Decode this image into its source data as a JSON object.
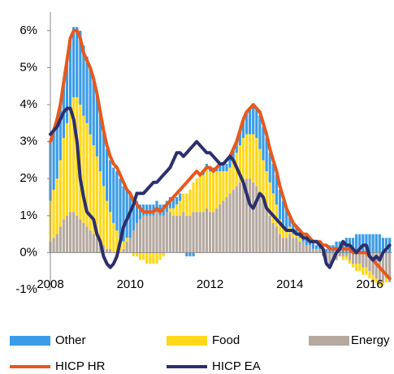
{
  "chart_data": {
    "type": "stacked-bar-line",
    "categories": [
      "2008",
      null,
      null,
      null,
      null,
      null,
      null,
      null,
      null,
      null,
      null,
      null,
      null,
      null,
      null,
      null,
      null,
      null,
      null,
      null,
      null,
      null,
      null,
      null,
      "2010",
      null,
      null,
      null,
      null,
      null,
      null,
      null,
      null,
      null,
      null,
      null,
      null,
      null,
      null,
      null,
      null,
      null,
      null,
      null,
      null,
      null,
      null,
      null,
      "2012",
      null,
      null,
      null,
      null,
      null,
      null,
      null,
      null,
      null,
      null,
      null,
      null,
      null,
      null,
      null,
      null,
      null,
      null,
      null,
      null,
      null,
      null,
      null,
      "2014",
      null,
      null,
      null,
      null,
      null,
      null,
      null,
      null,
      null,
      null,
      null,
      null,
      null,
      null,
      null,
      null,
      null,
      null,
      null,
      null,
      null,
      null,
      null,
      "2016",
      null,
      null,
      null,
      null,
      null,
      null
    ],
    "series": [
      {
        "name": "Energy",
        "kind": "bar",
        "color": "#b5a9a0",
        "values": [
          0.3,
          0.4,
          0.5,
          0.7,
          0.9,
          1.0,
          1.1,
          1.1,
          1.0,
          0.9,
          0.8,
          0.7,
          0.6,
          0.5,
          0.4,
          0.3,
          0.2,
          0.1,
          0.1,
          0.0,
          0.0,
          0.0,
          0.1,
          0.3,
          0.4,
          0.6,
          0.8,
          0.9,
          1.0,
          1.0,
          1.0,
          1.0,
          1.1,
          1.0,
          1.0,
          1.1,
          1.1,
          1.0,
          1.0,
          1.0,
          1.1,
          1.0,
          1.0,
          1.1,
          1.1,
          1.1,
          1.1,
          1.2,
          1.1,
          1.1,
          1.2,
          1.3,
          1.4,
          1.5,
          1.6,
          1.7,
          1.8,
          1.9,
          2.0,
          2.0,
          2.0,
          1.9,
          1.8,
          1.6,
          1.4,
          1.2,
          1.0,
          0.8,
          0.7,
          0.5,
          0.4,
          0.4,
          0.5,
          0.4,
          0.4,
          0.3,
          0.3,
          0.2,
          0.2,
          0.1,
          0.1,
          0.1,
          -0.1,
          -0.2,
          -0.3,
          -0.2,
          -0.2,
          -0.1,
          -0.1,
          -0.1,
          -0.2,
          -0.3,
          -0.3,
          -0.3,
          -0.4,
          -0.4,
          -0.5,
          -0.6,
          -0.7,
          -0.8,
          -0.8,
          -0.7,
          -0.8
        ]
      },
      {
        "name": "Food",
        "kind": "bar",
        "color": "#ffd81a",
        "values": [
          1.1,
          1.3,
          1.5,
          1.8,
          2.2,
          2.5,
          2.8,
          3.1,
          3.2,
          3.1,
          2.9,
          2.8,
          2.6,
          2.4,
          2.2,
          1.9,
          1.6,
          1.3,
          1.0,
          0.8,
          0.6,
          0.4,
          0.2,
          0.1,
          0.0,
          -0.1,
          -0.1,
          -0.2,
          -0.2,
          -0.3,
          -0.3,
          -0.3,
          -0.3,
          -0.2,
          -0.1,
          0.0,
          0.1,
          0.2,
          0.3,
          0.4,
          0.5,
          0.6,
          0.7,
          0.8,
          0.9,
          1.0,
          1.0,
          1.1,
          1.1,
          1.1,
          1.0,
          0.9,
          0.8,
          0.7,
          0.7,
          0.8,
          0.9,
          1.0,
          1.1,
          1.2,
          1.2,
          1.3,
          1.3,
          1.2,
          1.1,
          1.0,
          0.9,
          0.8,
          0.6,
          0.4,
          0.3,
          0.2,
          0.2,
          0.1,
          0.1,
          0.1,
          0.0,
          0.0,
          0.0,
          0.0,
          0.0,
          0.0,
          0.0,
          0.0,
          0.0,
          0.0,
          0.0,
          0.0,
          -0.1,
          -0.1,
          -0.1,
          -0.1,
          -0.2,
          -0.2,
          -0.2,
          -0.2,
          -0.2,
          -0.2,
          -0.1,
          -0.1,
          -0.1,
          -0.1,
          0.0
        ]
      },
      {
        "name": "Other",
        "kind": "bar",
        "color": "#3a9ce8",
        "values": [
          1.6,
          1.6,
          1.6,
          1.5,
          1.5,
          1.6,
          1.8,
          1.9,
          1.9,
          2.0,
          1.9,
          1.8,
          1.8,
          1.8,
          1.7,
          1.6,
          1.5,
          1.4,
          1.4,
          1.5,
          1.6,
          1.6,
          1.5,
          1.3,
          1.2,
          0.9,
          0.6,
          0.4,
          0.3,
          0.3,
          0.3,
          0.3,
          0.3,
          0.3,
          0.3,
          0.3,
          0.3,
          0.3,
          0.2,
          0.2,
          0.0,
          -0.1,
          -0.1,
          -0.1,
          0.0,
          0.0,
          0.1,
          0.1,
          0.1,
          0.1,
          0.1,
          0.2,
          0.2,
          0.2,
          0.3,
          0.3,
          0.3,
          0.4,
          0.5,
          0.6,
          0.7,
          0.8,
          0.8,
          0.9,
          0.9,
          0.9,
          0.8,
          0.8,
          0.8,
          0.8,
          0.7,
          0.6,
          0.3,
          0.3,
          0.2,
          0.2,
          0.2,
          0.2,
          0.2,
          0.2,
          0.1,
          0.1,
          0.1,
          0.1,
          0.2,
          0.2,
          0.3,
          0.3,
          0.3,
          0.4,
          0.4,
          0.4,
          0.5,
          0.5,
          0.5,
          0.5,
          0.5,
          0.5,
          0.5,
          0.5,
          0.4,
          0.4,
          0.4
        ]
      },
      {
        "name": "HICP HR",
        "kind": "line",
        "color": "#e8581c",
        "values": [
          3.0,
          3.3,
          3.6,
          4.0,
          4.6,
          5.2,
          5.8,
          6.0,
          6.0,
          5.8,
          5.4,
          5.2,
          5.0,
          4.7,
          4.3,
          3.8,
          3.3,
          2.9,
          2.6,
          2.4,
          2.3,
          2.1,
          1.9,
          1.7,
          1.6,
          1.4,
          1.3,
          1.2,
          1.1,
          1.1,
          1.1,
          1.1,
          1.2,
          1.1,
          1.2,
          1.3,
          1.4,
          1.5,
          1.6,
          1.7,
          1.8,
          1.9,
          2.0,
          2.1,
          2.2,
          2.1,
          2.2,
          2.3,
          2.3,
          2.2,
          2.3,
          2.4,
          2.4,
          2.5,
          2.6,
          2.8,
          3.0,
          3.3,
          3.6,
          3.8,
          3.9,
          4.0,
          3.9,
          3.8,
          3.5,
          3.2,
          2.8,
          2.5,
          2.2,
          1.8,
          1.5,
          1.2,
          1.0,
          0.8,
          0.7,
          0.6,
          0.5,
          0.5,
          0.4,
          0.3,
          0.3,
          0.3,
          0.2,
          0.2,
          0.1,
          0.1,
          0.1,
          0.1,
          0.1,
          0.1,
          0.1,
          0.0,
          0.0,
          0.0,
          0.0,
          0.0,
          -0.1,
          -0.2,
          -0.3,
          -0.4,
          -0.5,
          -0.6,
          -0.7
        ]
      },
      {
        "name": "HICP EA",
        "kind": "line",
        "color": "#2c2f6c",
        "values": [
          3.2,
          3.3,
          3.4,
          3.6,
          3.8,
          3.9,
          3.9,
          3.6,
          3.0,
          2.0,
          1.5,
          1.1,
          1.0,
          0.9,
          0.5,
          0.3,
          -0.1,
          -0.3,
          -0.4,
          -0.3,
          -0.1,
          0.3,
          0.7,
          0.9,
          1.1,
          1.3,
          1.6,
          1.6,
          1.6,
          1.7,
          1.8,
          1.9,
          1.9,
          2.0,
          2.1,
          2.2,
          2.3,
          2.5,
          2.7,
          2.7,
          2.6,
          2.7,
          2.8,
          2.9,
          3.0,
          2.9,
          2.8,
          2.7,
          2.7,
          2.6,
          2.5,
          2.4,
          2.4,
          2.5,
          2.6,
          2.5,
          2.3,
          2.1,
          1.9,
          1.6,
          1.3,
          1.2,
          1.4,
          1.6,
          1.5,
          1.2,
          1.1,
          1.0,
          0.9,
          0.8,
          0.7,
          0.6,
          0.6,
          0.6,
          0.5,
          0.5,
          0.4,
          0.4,
          0.3,
          0.3,
          0.3,
          0.2,
          0.1,
          -0.3,
          -0.4,
          -0.2,
          0.0,
          0.1,
          0.3,
          0.2,
          0.2,
          0.1,
          0.0,
          0.1,
          0.2,
          0.2,
          -0.1,
          -0.2,
          -0.1,
          -0.2,
          0.0,
          0.1,
          0.2
        ]
      }
    ],
    "ylim": [
      -1,
      6.5
    ],
    "yticks": [
      {
        "value": -1,
        "label": "-1%"
      },
      {
        "value": 0,
        "label": "0%"
      },
      {
        "value": 1,
        "label": "1%"
      },
      {
        "value": 2,
        "label": "2%"
      },
      {
        "value": 3,
        "label": "3%"
      },
      {
        "value": 4,
        "label": "4%"
      },
      {
        "value": 5,
        "label": "5%"
      },
      {
        "value": 6,
        "label": "6%"
      }
    ],
    "legend": "bottom"
  }
}
